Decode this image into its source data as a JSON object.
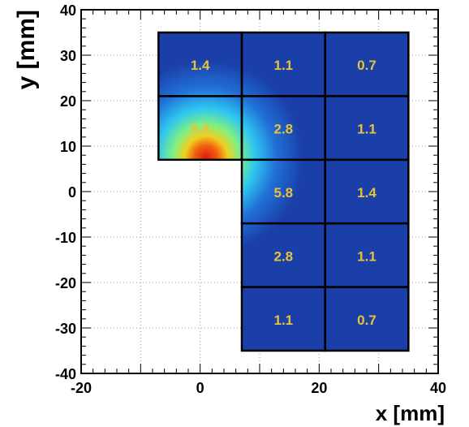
{
  "chart_data": {
    "type": "heatmap",
    "title": "",
    "xlabel": "x [mm]",
    "ylabel": "y [mm]",
    "xlim": [
      -20,
      40
    ],
    "ylim": [
      -40,
      40
    ],
    "x_ticks": [
      -20,
      0,
      20,
      40
    ],
    "y_ticks": [
      -40,
      -30,
      -20,
      -10,
      0,
      10,
      20,
      30,
      40
    ],
    "grid": true,
    "hotspot": {
      "x": 1,
      "y": 7.5,
      "value": "max"
    },
    "cells": [
      {
        "x": [
          -7,
          7
        ],
        "y": [
          21,
          35
        ],
        "value": 1.4,
        "label": "1.4"
      },
      {
        "x": [
          7,
          21
        ],
        "y": [
          21,
          35
        ],
        "value": 1.1,
        "label": "1.1"
      },
      {
        "x": [
          21,
          35
        ],
        "y": [
          21,
          35
        ],
        "value": 0.7,
        "label": "0.7"
      },
      {
        "x": [
          -7,
          7
        ],
        "y": [
          7,
          21
        ],
        "value": 5.8,
        "label": "5.8"
      },
      {
        "x": [
          7,
          21
        ],
        "y": [
          7,
          21
        ],
        "value": 2.8,
        "label": "2.8"
      },
      {
        "x": [
          21,
          35
        ],
        "y": [
          7,
          21
        ],
        "value": 1.1,
        "label": "1.1"
      },
      {
        "x": [
          7,
          21
        ],
        "y": [
          -7,
          7
        ],
        "value": 5.8,
        "label": "5.8"
      },
      {
        "x": [
          21,
          35
        ],
        "y": [
          -7,
          7
        ],
        "value": 1.4,
        "label": "1.4"
      },
      {
        "x": [
          7,
          21
        ],
        "y": [
          -21,
          -7
        ],
        "value": 2.8,
        "label": "2.8"
      },
      {
        "x": [
          21,
          35
        ],
        "y": [
          -21,
          -7
        ],
        "value": 1.1,
        "label": "1.1"
      },
      {
        "x": [
          7,
          21
        ],
        "y": [
          -35,
          -21
        ],
        "value": 1.1,
        "label": "1.1"
      },
      {
        "x": [
          21,
          35
        ],
        "y": [
          -35,
          -21
        ],
        "value": 0.7,
        "label": "0.7"
      }
    ],
    "colors": {
      "background_field": "#1a3fa8",
      "hot": "#e01a10",
      "warm": "#f0c020",
      "mid": "#40d0e0",
      "label": "#e8c23a"
    }
  }
}
